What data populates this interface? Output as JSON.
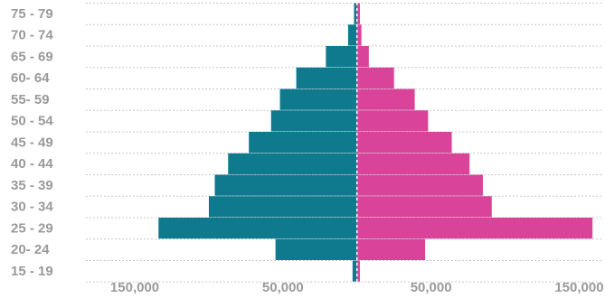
{
  "chart_data": {
    "type": "bar",
    "orientation": "horizontal-pyramid",
    "title": "",
    "xlabel": "",
    "ylabel": "",
    "categories": [
      "75 - 79",
      "70 - 74",
      "65 - 69",
      "60- 64",
      "55- 59",
      "50 - 54",
      "45 - 49",
      "40 - 44",
      "35 - 39",
      "30 - 34",
      "25 - 29",
      "20- 24",
      "15 - 19"
    ],
    "series": [
      {
        "color": "#0f7a8e",
        "side": "left",
        "values": [
          2000,
          6000,
          21000,
          41000,
          52000,
          58000,
          73000,
          87000,
          96000,
          100000,
          134000,
          55000,
          3000
        ]
      },
      {
        "color": "#d9449a",
        "side": "right",
        "values": [
          2000,
          3000,
          8000,
          25000,
          39000,
          48000,
          64000,
          76000,
          85000,
          91000,
          159000,
          46000,
          2000
        ]
      }
    ],
    "x_ticks": [
      {
        "label": "150,000",
        "value": -150000
      },
      {
        "label": "50,000",
        "value": -50000
      },
      {
        "label": "50,000",
        "value": 50000
      },
      {
        "label": "150,000",
        "value": 150000
      }
    ],
    "xlim": [
      -183000,
      165000
    ],
    "grid": true,
    "legend": "none"
  }
}
